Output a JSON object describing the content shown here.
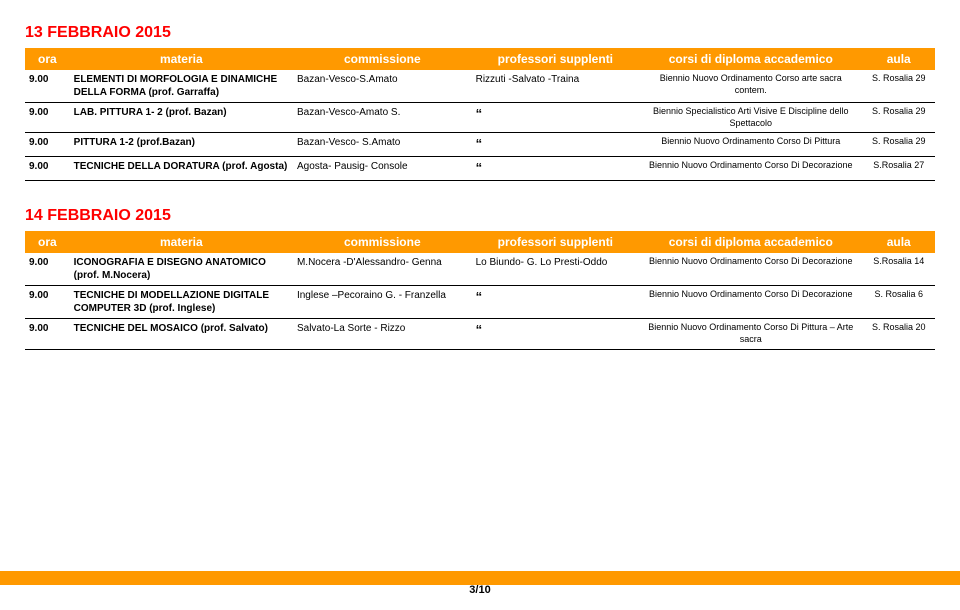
{
  "section1": {
    "title": "13 FEBBRAIO 2015",
    "headers": {
      "ora": "ora",
      "materia": "materia",
      "commissione": "commissione",
      "prof": "professori supplenti",
      "corsi": "corsi di diploma accademico",
      "aula": "aula"
    },
    "rows": [
      {
        "ora": "9.00",
        "materia": "ELEMENTI DI MORFOLOGIA E DINAMICHE DELLA FORMA (prof. Garraffa)",
        "commissione": "Bazan-Vesco-S.Amato",
        "prof": "Rizzuti -Salvato -Traina",
        "corsi": "Biennio Nuovo Ordinamento Corso arte sacra contem.",
        "aula": "S. Rosalia 29"
      },
      {
        "ora": "9.00",
        "materia": "LAB. PITTURA 1- 2 (prof. Bazan)",
        "commissione": "Bazan-Vesco-Amato S.",
        "prof": "“",
        "corsi": "Biennio Specialistico Arti Visive E Discipline dello Spettacolo",
        "aula": "S. Rosalia 29"
      },
      {
        "ora": "9.00",
        "materia": "PITTURA 1-2 (prof.Bazan)",
        "commissione": "Bazan-Vesco- S.Amato",
        "prof": "“",
        "corsi": "Biennio Nuovo Ordinamento Corso Di Pittura",
        "aula": "S. Rosalia 29"
      },
      {
        "ora": "9.00",
        "materia": "TECNICHE DELLA DORATURA (prof. Agosta)",
        "commissione": "Agosta- Pausig- Console",
        "prof": "“",
        "corsi": "Biennio Nuovo Ordinamento Corso Di Decorazione",
        "aula": "S.Rosalia 27"
      }
    ]
  },
  "section2": {
    "title": "14 FEBBRAIO 2015",
    "headers": {
      "ora": "ora",
      "materia": "materia",
      "commissione": "commissione",
      "prof": "professori supplenti",
      "corsi": "corsi di diploma accademico",
      "aula": "aula"
    },
    "rows": [
      {
        "ora": "9.00",
        "materia": "ICONOGRAFIA E DISEGNO ANATOMICO (prof. M.Nocera)",
        "commissione": "M.Nocera -D'Alessandro- Genna",
        "prof": "Lo Biundo- G. Lo Presti-Oddo",
        "corsi": "Biennio Nuovo Ordinamento Corso Di Decorazione",
        "aula": "S.Rosalia 14"
      },
      {
        "ora": "9.00",
        "materia": "TECNICHE DI MODELLAZIONE DIGITALE COMPUTER 3D (prof. Inglese)",
        "commissione": "Inglese –Pecoraino G. - Franzella",
        "prof": "“",
        "corsi": "Biennio Nuovo Ordinamento Corso Di Decorazione",
        "aula": "S. Rosalia 6"
      },
      {
        "ora": "9.00",
        "materia": "TECNICHE DEL MOSAICO (prof. Salvato)",
        "commissione": "Salvato-La Sorte - Rizzo",
        "prof": "“",
        "corsi": "Biennio Nuovo Ordinamento Corso Di Pittura – Arte sacra",
        "aula": "S. Rosalia 20"
      }
    ]
  },
  "page": "3/10"
}
